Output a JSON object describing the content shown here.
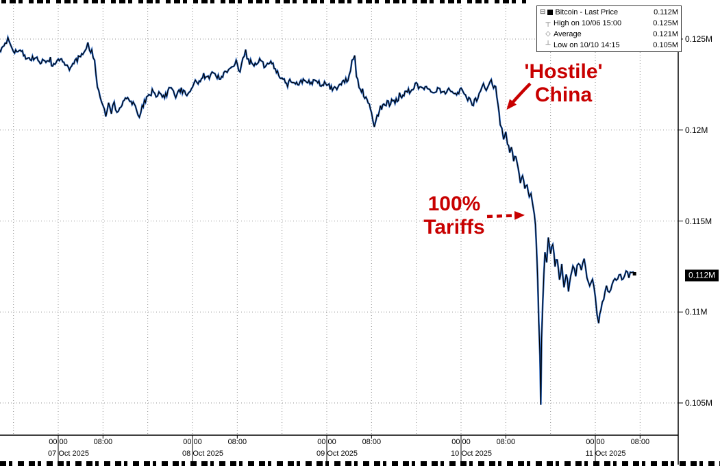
{
  "colors": {
    "line": "#000000",
    "line_glow": "#1e5fc0",
    "annotation_red": "#c80000",
    "grid": "#8c8c8c",
    "badge_bg": "#000000",
    "badge_fg": "#ffffff"
  },
  "legend": {
    "rows": [
      {
        "icon": "tree-collapse-icon",
        "glyph": "⊟",
        "label": "Bitcoin - Last Price",
        "value": "0.112M"
      },
      {
        "icon": "high-marker-icon",
        "glyph": "┬",
        "label": "High on 10/06 15:00",
        "value": "0.125M"
      },
      {
        "icon": "average-marker-icon",
        "glyph": "◇",
        "label": "Average",
        "value": "0.121M"
      },
      {
        "icon": "low-marker-icon",
        "glyph": "┴",
        "label": "Low on 10/10 14:15",
        "value": "0.105M"
      }
    ]
  },
  "annotations": {
    "hostile": {
      "line1": "'Hostile'",
      "line2": "China"
    },
    "tariffs": {
      "line1": "100%",
      "line2": "Tariffs"
    }
  },
  "chart_data": {
    "type": "line",
    "series": [
      {
        "name": "Bitcoin - Last Price",
        "unit": "M USD",
        "x_unit": "hours since 07 Oct 2025 00:00",
        "anchors": [
          [
            -10.5,
            0.1244
          ],
          [
            -9.5,
            0.1247
          ],
          [
            -9,
            0.125
          ],
          [
            -8,
            0.1242
          ],
          [
            -7,
            0.1244
          ],
          [
            -6,
            0.1241
          ],
          [
            -5,
            0.1238
          ],
          [
            -4,
            0.1241
          ],
          [
            -3,
            0.1237
          ],
          [
            -2,
            0.1239
          ],
          [
            -1,
            0.1236
          ],
          [
            0,
            0.124
          ],
          [
            1,
            0.1238
          ],
          [
            2,
            0.1234
          ],
          [
            3,
            0.1237
          ],
          [
            4,
            0.1241
          ],
          [
            5,
            0.1244
          ],
          [
            5.3,
            0.1249
          ],
          [
            5.6,
            0.1243
          ],
          [
            6,
            0.1244
          ],
          [
            6.5,
            0.1238
          ],
          [
            7,
            0.1225
          ],
          [
            7.5,
            0.1218
          ],
          [
            8,
            0.1215
          ],
          [
            8.5,
            0.1208
          ],
          [
            9,
            0.1214
          ],
          [
            9.5,
            0.121
          ],
          [
            10,
            0.1216
          ],
          [
            10.5,
            0.1209
          ],
          [
            11,
            0.1213
          ],
          [
            12,
            0.1218
          ],
          [
            13,
            0.1216
          ],
          [
            14,
            0.1212
          ],
          [
            14.5,
            0.1207
          ],
          [
            15,
            0.1213
          ],
          [
            16,
            0.1218
          ],
          [
            17,
            0.1222
          ],
          [
            17.5,
            0.1217
          ],
          [
            18,
            0.122
          ],
          [
            19,
            0.1218
          ],
          [
            20,
            0.1223
          ],
          [
            21,
            0.1219
          ],
          [
            22,
            0.1222
          ],
          [
            23,
            0.122
          ],
          [
            24,
            0.1223
          ],
          [
            24.5,
            0.1228
          ],
          [
            25,
            0.1226
          ],
          [
            26,
            0.123
          ],
          [
            27,
            0.1228
          ],
          [
            27.5,
            0.1233
          ],
          [
            28,
            0.123
          ],
          [
            29,
            0.1228
          ],
          [
            30,
            0.1232
          ],
          [
            31,
            0.1235
          ],
          [
            32,
            0.1238
          ],
          [
            32.5,
            0.1232
          ],
          [
            33,
            0.1239
          ],
          [
            33.5,
            0.1243
          ],
          [
            34,
            0.1238
          ],
          [
            35,
            0.1236
          ],
          [
            36,
            0.1238
          ],
          [
            37,
            0.1235
          ],
          [
            38,
            0.1237
          ],
          [
            39,
            0.1233
          ],
          [
            40,
            0.1228
          ],
          [
            41,
            0.1225
          ],
          [
            42,
            0.1227
          ],
          [
            43,
            0.1226
          ],
          [
            44,
            0.1228
          ],
          [
            45,
            0.1226
          ],
          [
            46,
            0.1227
          ],
          [
            47,
            0.1225
          ],
          [
            48,
            0.1226
          ],
          [
            49,
            0.1222
          ],
          [
            50,
            0.1224
          ],
          [
            51,
            0.1226
          ],
          [
            52,
            0.1229
          ],
          [
            52.5,
            0.1238
          ],
          [
            53,
            0.1241
          ],
          [
            53.3,
            0.123
          ],
          [
            54,
            0.1222
          ],
          [
            55,
            0.1218
          ],
          [
            56,
            0.121
          ],
          [
            56.5,
            0.1203
          ],
          [
            57,
            0.1208
          ],
          [
            58,
            0.1213
          ],
          [
            59,
            0.1216
          ],
          [
            60,
            0.1215
          ],
          [
            61,
            0.1218
          ],
          [
            62,
            0.122
          ],
          [
            63,
            0.1222
          ],
          [
            64,
            0.1225
          ],
          [
            65,
            0.1222
          ],
          [
            66,
            0.1224
          ],
          [
            67,
            0.1221
          ],
          [
            68,
            0.1223
          ],
          [
            69,
            0.122
          ],
          [
            70,
            0.1222
          ],
          [
            71,
            0.1219
          ],
          [
            72,
            0.1222
          ],
          [
            73,
            0.1218
          ],
          [
            74,
            0.1215
          ],
          [
            75,
            0.1218
          ],
          [
            75.5,
            0.1222
          ],
          [
            76,
            0.1226
          ],
          [
            76.5,
            0.1223
          ],
          [
            77,
            0.1225
          ],
          [
            77.4,
            0.1228
          ],
          [
            77.8,
            0.1222
          ],
          [
            78.2,
            0.1224
          ],
          [
            78.6,
            0.1215
          ],
          [
            79,
            0.1204
          ],
          [
            79.3,
            0.12
          ],
          [
            79.6,
            0.1196
          ],
          [
            80,
            0.1199
          ],
          [
            80.3,
            0.1192
          ],
          [
            80.7,
            0.1188
          ],
          [
            81,
            0.119
          ],
          [
            81.4,
            0.1183
          ],
          [
            81.8,
            0.1186
          ],
          [
            82.2,
            0.1178
          ],
          [
            82.6,
            0.1172
          ],
          [
            83,
            0.1175
          ],
          [
            83.4,
            0.1168
          ],
          [
            83.8,
            0.1171
          ],
          [
            84.2,
            0.1163
          ],
          [
            84.5,
            0.1166
          ],
          [
            84.8,
            0.1158
          ],
          [
            85.1,
            0.1153
          ],
          [
            85.3,
            0.1148
          ],
          [
            85.5,
            0.1135
          ],
          [
            85.7,
            0.1118
          ],
          [
            85.9,
            0.1095
          ],
          [
            86.1,
            0.1075
          ],
          [
            86.25,
            0.105
          ],
          [
            86.4,
            0.1085
          ],
          [
            86.6,
            0.1105
          ],
          [
            86.8,
            0.1122
          ],
          [
            87,
            0.1133
          ],
          [
            87.3,
            0.1128
          ],
          [
            87.6,
            0.114
          ],
          [
            88,
            0.1132
          ],
          [
            88.4,
            0.1138
          ],
          [
            88.8,
            0.1125
          ],
          [
            89.2,
            0.113
          ],
          [
            89.6,
            0.1118
          ],
          [
            90,
            0.1125
          ],
          [
            90.4,
            0.1115
          ],
          [
            90.8,
            0.1122
          ],
          [
            91.2,
            0.1112
          ],
          [
            91.6,
            0.112
          ],
          [
            92,
            0.1126
          ],
          [
            92.5,
            0.1121
          ],
          [
            93,
            0.1128
          ],
          [
            93.5,
            0.1123
          ],
          [
            94,
            0.1129
          ],
          [
            94.5,
            0.112
          ],
          [
            95,
            0.1113
          ],
          [
            95.5,
            0.1117
          ],
          [
            96,
            0.1108
          ],
          [
            96.3,
            0.1098
          ],
          [
            96.6,
            0.1093
          ],
          [
            97,
            0.1102
          ],
          [
            97.5,
            0.1108
          ],
          [
            98,
            0.1113
          ],
          [
            98.5,
            0.111
          ],
          [
            99,
            0.1116
          ],
          [
            99.5,
            0.1119
          ],
          [
            100,
            0.1118
          ],
          [
            100.5,
            0.1121
          ],
          [
            101,
            0.1119
          ],
          [
            101.5,
            0.1122
          ],
          [
            102,
            0.112
          ],
          [
            102.5,
            0.1122
          ],
          [
            103,
            0.1121
          ]
        ]
      }
    ],
    "x_axis": {
      "tick_interval_hours": 8,
      "time_labels": [
        "00:00",
        "08:00"
      ],
      "dates": [
        "07 Oct 2025",
        "08 Oct 2025",
        "09 Oct 2025",
        "10 Oct 2025",
        "11 Oct 2025"
      ]
    },
    "y_axis": {
      "unit": "M",
      "ticks": [
        0.125,
        0.12,
        0.115,
        0.11,
        0.105
      ],
      "tick_labels": [
        "0.125M",
        "0.12M",
        "0.115M",
        "0.11M",
        "0.105M"
      ],
      "range": [
        0.1032,
        0.1269
      ],
      "last_price": 0.112,
      "last_price_label": "0.112M"
    },
    "stats": {
      "last": "0.112M",
      "high": "0.125M",
      "high_time": "10/06 15:00",
      "average": "0.121M",
      "low": "0.105M",
      "low_time": "10/10 14:15"
    },
    "grid": true,
    "legend_position": "top-right"
  }
}
